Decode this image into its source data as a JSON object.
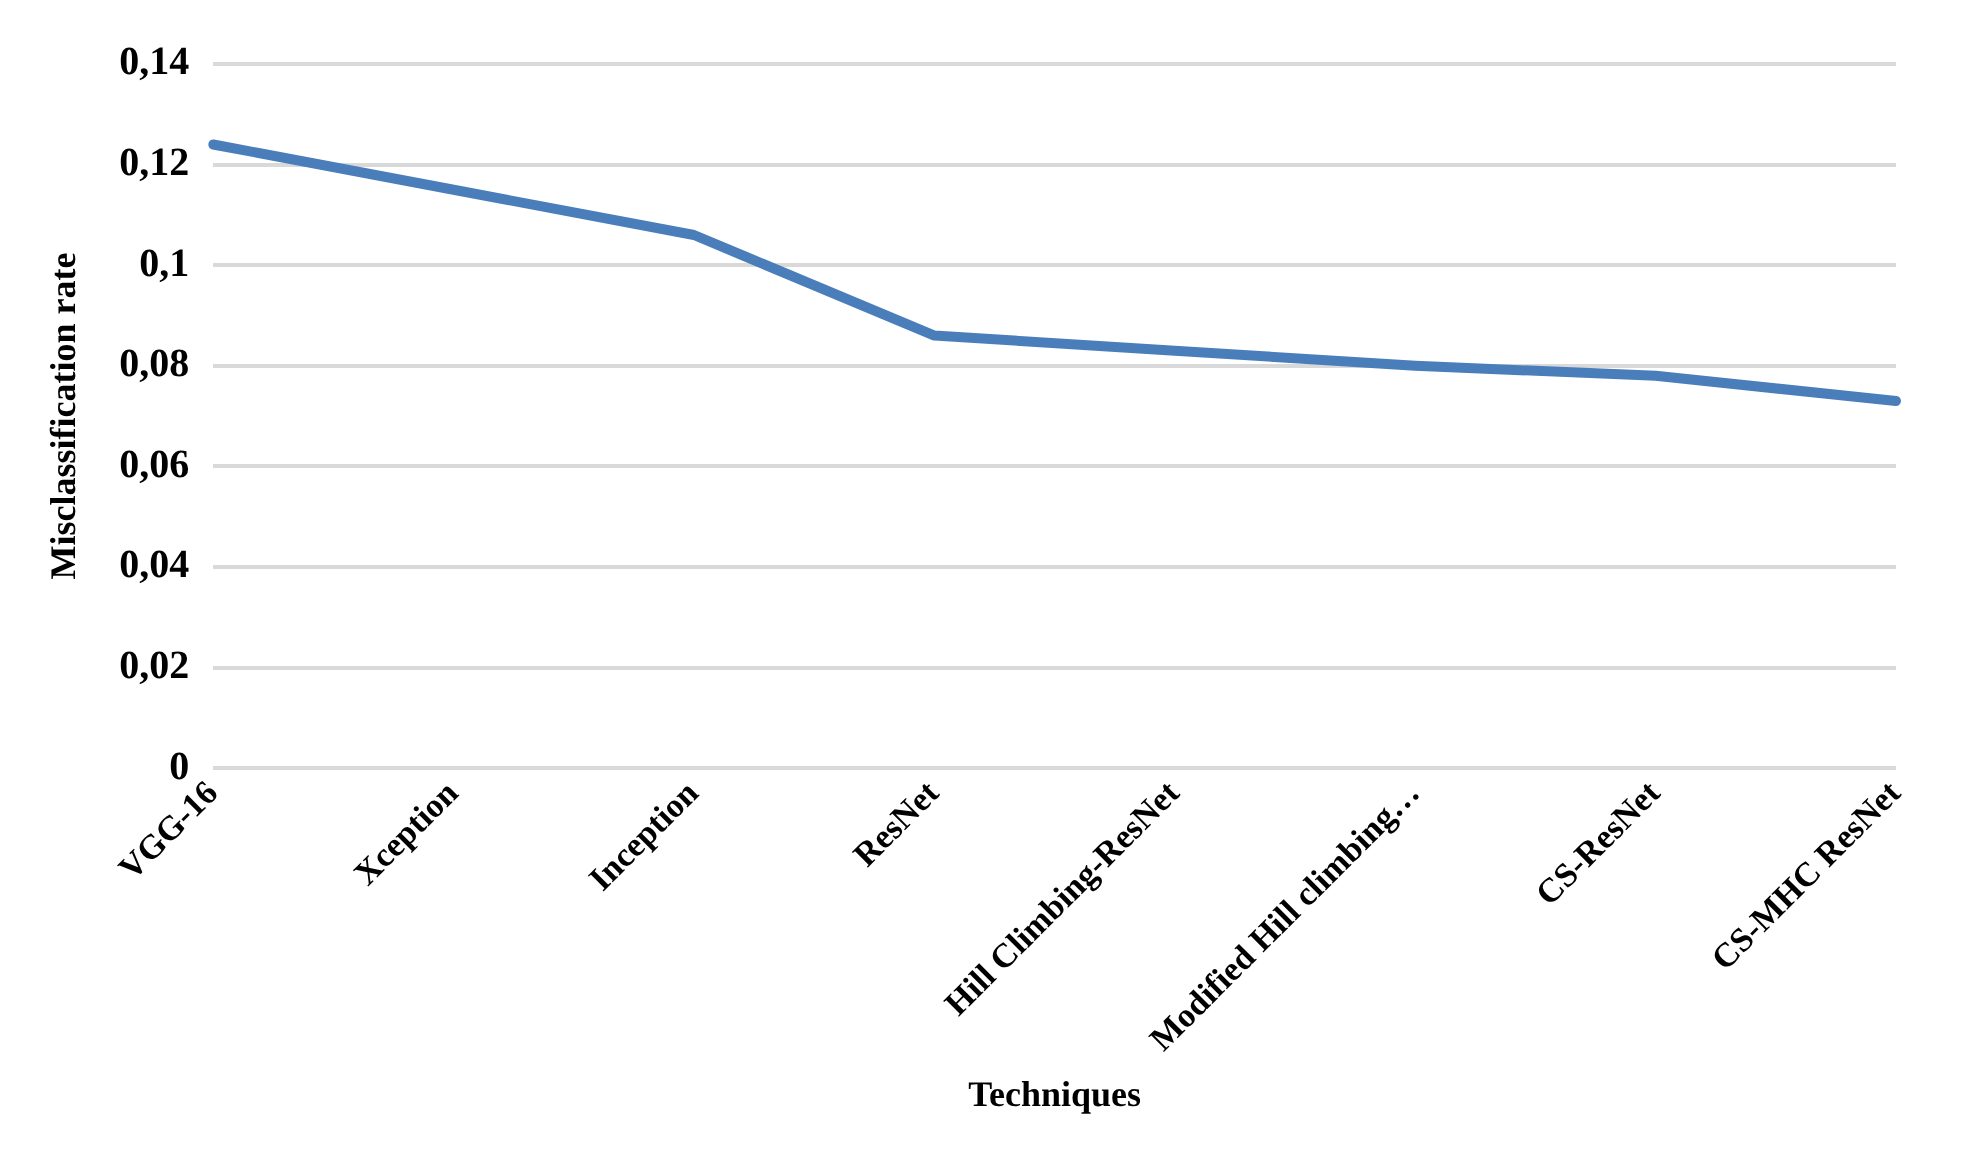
{
  "chart_data": {
    "type": "line",
    "xlabel": "Techniques",
    "ylabel": "Misclassification rate",
    "categories": [
      "VGG-16",
      "Xception",
      "Inception",
      "ResNet",
      "Hill Climbing-ResNet",
      "Modified Hill climbing…",
      "CS-ResNet",
      "CS-MHC ResNet"
    ],
    "series": [
      {
        "color": "#4a7ebb",
        "values": [
          0.124,
          0.115,
          0.106,
          0.086,
          0.083,
          0.08,
          0.078,
          0.073
        ]
      }
    ],
    "ylim": [
      0,
      0.14
    ],
    "yticks": [
      0,
      {
        "value": 0.02,
        "label": "0,02"
      },
      {
        "value": 0.04,
        "label": "0,04"
      },
      {
        "value": 0.06,
        "label": "0,06"
      },
      {
        "value": 0.08,
        "label": "0,08"
      },
      {
        "value": 0.1,
        "label": "0,1"
      },
      {
        "value": 0.12,
        "label": "0,12"
      },
      {
        "value": 0.14,
        "label": "0,14"
      }
    ],
    "grid": "y",
    "legend": false,
    "marker": "none",
    "line_style": "solid"
  }
}
